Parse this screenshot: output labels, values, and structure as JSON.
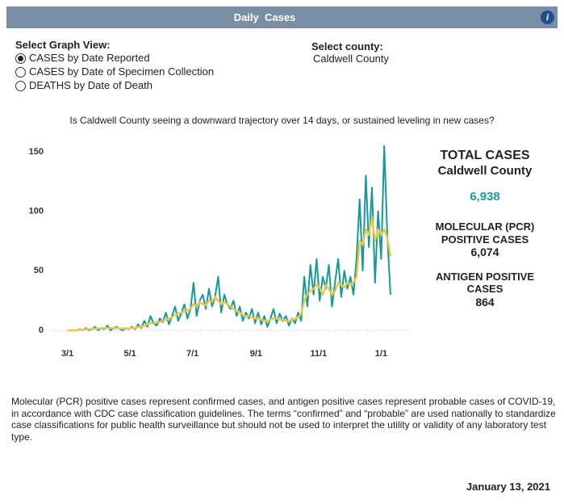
{
  "header": {
    "title": "Daily  Cases",
    "info": "i"
  },
  "controls": {
    "view_label": "Select Graph View:",
    "options": [
      "CASES by Date Reported",
      "CASES by Date of Specimen Collection",
      "DEATHS by Date of Death"
    ],
    "county_label": "Select county:",
    "county": "Caldwell County"
  },
  "question": "Is Caldwell County seeing a downward trajectory over 14 days, or sustained leveling in new cases?",
  "chart_data": {
    "type": "line",
    "x": [
      0,
      3,
      6,
      9,
      12,
      15,
      18,
      21,
      24,
      27,
      30,
      33,
      36,
      39,
      42,
      45,
      48,
      51,
      54,
      57,
      60,
      63,
      66,
      69,
      72,
      75,
      78,
      81,
      84,
      87,
      90,
      93,
      96,
      99,
      102,
      105,
      108,
      111,
      114,
      117,
      120,
      123,
      126,
      129,
      132,
      135,
      138,
      141,
      144,
      147,
      150,
      153,
      156,
      159,
      162,
      165,
      168,
      171,
      174,
      177,
      180,
      183,
      186,
      189,
      192,
      195,
      198,
      201,
      204,
      207,
      210,
      213,
      216,
      219,
      222,
      225,
      228,
      231,
      234,
      237,
      240,
      243,
      246,
      249,
      252,
      255,
      258,
      261,
      264,
      267,
      270,
      273,
      276,
      279,
      282,
      285,
      288,
      291,
      294,
      297,
      300,
      303,
      306,
      309,
      312,
      315
    ],
    "series": [
      {
        "color": "#17989a",
        "values": [
          0,
          0,
          0,
          0,
          1,
          0,
          2,
          0,
          1,
          3,
          0,
          2,
          1,
          4,
          0,
          2,
          3,
          1,
          0,
          2,
          1,
          3,
          1,
          5,
          2,
          8,
          3,
          12,
          6,
          4,
          10,
          7,
          15,
          5,
          12,
          20,
          8,
          14,
          22,
          10,
          18,
          40,
          12,
          25,
          30,
          18,
          35,
          20,
          28,
          45,
          15,
          30,
          22,
          18,
          25,
          12,
          20,
          8,
          15,
          10,
          18,
          6,
          15,
          5,
          12,
          3,
          10,
          18,
          6,
          14,
          8,
          12,
          4,
          10,
          6,
          15,
          8,
          45,
          20,
          55,
          30,
          60,
          25,
          45,
          35,
          55,
          20,
          40,
          60,
          28,
          50,
          35,
          45,
          30,
          60,
          110,
          50,
          130,
          70,
          120,
          40,
          100,
          60,
          155,
          80,
          30
        ]
      },
      {
        "color": "#e8c84a",
        "values": [
          0,
          0,
          0,
          0,
          0.5,
          0.5,
          1,
          1,
          1,
          1.5,
          1.5,
          1.5,
          2,
          2,
          2,
          2,
          2,
          1.5,
          1.5,
          1.5,
          1.5,
          2,
          2,
          3,
          3,
          4,
          5,
          6,
          6,
          7,
          7,
          8,
          9,
          10,
          11,
          13,
          14,
          15,
          16,
          17,
          18,
          22,
          20,
          24,
          22,
          21,
          25,
          24,
          28,
          25,
          22,
          24,
          22,
          20,
          18,
          16,
          15,
          13,
          12,
          12,
          11,
          10,
          10,
          9,
          8,
          8,
          9,
          10,
          10,
          9,
          9,
          8,
          8,
          9,
          10,
          11,
          14,
          25,
          30,
          33,
          35,
          38,
          36,
          30,
          38,
          35,
          30,
          33,
          40,
          38,
          36,
          40,
          38,
          40,
          45,
          75,
          72,
          85,
          80,
          95,
          75,
          85,
          80,
          85,
          78,
          62
        ]
      }
    ],
    "xlim": [
      -17,
      334
    ],
    "xticks": [
      {
        "value": 0,
        "label": "3/1"
      },
      {
        "value": 61,
        "label": "5/1"
      },
      {
        "value": 122,
        "label": "7/1"
      },
      {
        "value": 184,
        "label": "9/1"
      },
      {
        "value": 245,
        "label": "11/1"
      },
      {
        "value": 306,
        "label": "1/1"
      }
    ],
    "ylim": [
      0,
      155
    ],
    "yticks": [
      0,
      50,
      100,
      150
    ]
  },
  "stats": {
    "total_title": "TOTAL CASES",
    "county": "Caldwell County",
    "total": "6,938",
    "pcr_label": [
      "MOLECULAR (PCR)",
      "POSITIVE CASES"
    ],
    "pcr": "6,074",
    "antigen_label": [
      "ANTIGEN POSITIVE",
      "CASES"
    ],
    "antigen": "864"
  },
  "footnote": "Molecular (PCR) positive cases represent confirmed cases, and antigen positive cases represent probable cases of COVID-19, in accordance with CDC case classification guidelines. The terms “confirmed” and “probable” are used nationally to standardize case classifications for public health surveillance but should not be used to interpret the utility or validity of any laboratory test type.",
  "date": "January 13, 2021"
}
